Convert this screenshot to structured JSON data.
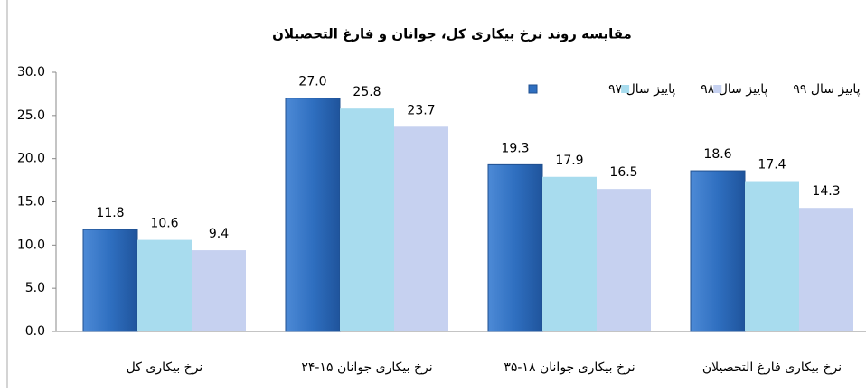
{
  "chart_data": {
    "type": "bar",
    "title": "مقایسه روند نرخ بیکاری کل، جوانان و فارغ التحصیلان",
    "categories": [
      "نرخ بیکاری کل",
      "نرخ بیکاری جوانان ۱۵-۲۴",
      "نرخ بیکاری جوانان ۱۸-۳۵",
      "نرخ بیکاری فارغ التحصیلان"
    ],
    "series": [
      {
        "name": "پاییز سال ۹۷",
        "color": "#2f6fc0",
        "values": [
          11.8,
          27,
          19.3,
          18.6
        ],
        "value_labels": [
          "11.8",
          "27.0",
          "19.3",
          "18.6"
        ]
      },
      {
        "name": "پاییز سال ۹۸",
        "color": "#a8dcee",
        "values": [
          10.6,
          25.8,
          17.9,
          17.4
        ],
        "value_labels": [
          "10.6",
          "25.8",
          "17.9",
          "17.4"
        ]
      },
      {
        "name": "پاییز سال ۹۹",
        "color": "#c6d1f0",
        "values": [
          9.4,
          23.7,
          16.5,
          14.3
        ],
        "value_labels": [
          "9.4",
          "23.7",
          "16.5",
          "14.3"
        ]
      }
    ],
    "ylim": [
      0,
      30
    ],
    "yticks": [
      {
        "value": 0,
        "label": "0.0"
      },
      {
        "value": 5,
        "label": "5.0"
      },
      {
        "value": 10,
        "label": "10.0"
      },
      {
        "value": 15,
        "label": "15.0"
      },
      {
        "value": 20,
        "label": "20.0"
      },
      {
        "value": 25,
        "label": "25.0"
      },
      {
        "value": 30,
        "label": "30.0"
      }
    ],
    "legend": "top-right"
  }
}
